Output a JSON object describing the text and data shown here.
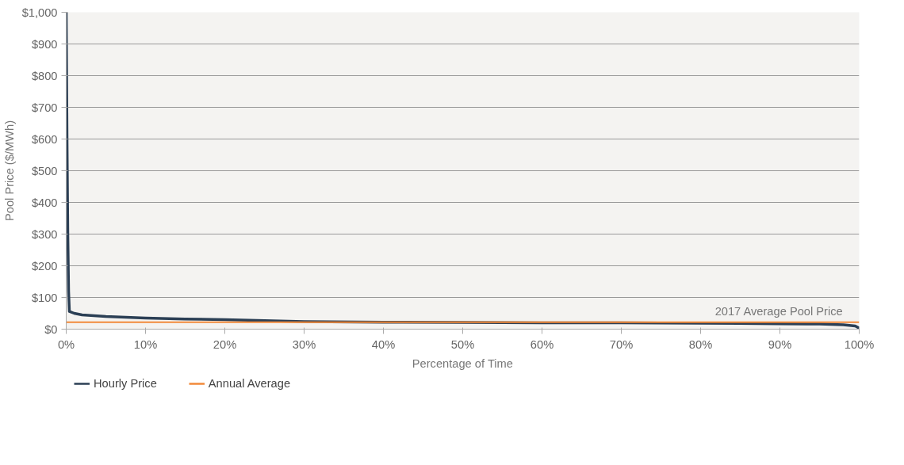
{
  "chart_data": {
    "type": "line",
    "xlabel": "Percentage of Time",
    "ylabel": "Pool Price ($/MWh)",
    "x": [
      0,
      0.1,
      0.2,
      0.3,
      0.4,
      1,
      2,
      5,
      10,
      15,
      20,
      25,
      30,
      40,
      50,
      60,
      70,
      80,
      85,
      90,
      95,
      98,
      99.5,
      100
    ],
    "series": [
      {
        "name": "Hourly Price",
        "color": "#2b3f55",
        "values": [
          1000,
          600,
          300,
          120,
          56,
          50,
          45,
          40,
          35,
          32,
          30,
          27,
          24,
          22,
          21,
          20,
          20,
          19,
          18,
          17,
          16,
          14,
          10,
          3
        ]
      },
      {
        "name": "Annual Average",
        "color": "#f28a3a",
        "x": [
          0,
          100
        ],
        "values": [
          22,
          22
        ]
      }
    ],
    "annotations": [
      {
        "text": "2017 Average Pool Price",
        "x": 98,
        "y": 22
      }
    ],
    "xlim": [
      0,
      100
    ],
    "ylim": [
      0,
      1000
    ],
    "xticks": [
      {
        "value": 0,
        "label": "0%"
      },
      {
        "value": 10,
        "label": "10%"
      },
      {
        "value": 20,
        "label": "20%"
      },
      {
        "value": 30,
        "label": "30%"
      },
      {
        "value": 40,
        "label": "40%"
      },
      {
        "value": 50,
        "label": "50%"
      },
      {
        "value": 60,
        "label": "60%"
      },
      {
        "value": 70,
        "label": "70%"
      },
      {
        "value": 80,
        "label": "80%"
      },
      {
        "value": 90,
        "label": "90%"
      },
      {
        "value": 100,
        "label": "100%"
      }
    ],
    "yticks": [
      {
        "value": 0,
        "label": "$0"
      },
      {
        "value": 100,
        "label": "$100"
      },
      {
        "value": 200,
        "label": "$200"
      },
      {
        "value": 300,
        "label": "$300"
      },
      {
        "value": 400,
        "label": "$400"
      },
      {
        "value": 500,
        "label": "$500"
      },
      {
        "value": 600,
        "label": "$600"
      },
      {
        "value": 700,
        "label": "$700"
      },
      {
        "value": 800,
        "label": "$800"
      },
      {
        "value": 900,
        "label": "$900"
      },
      {
        "value": 1000,
        "label": "$1,000"
      }
    ],
    "grid": "y",
    "legend": "bottom",
    "marker": "none",
    "line_style": "solid"
  }
}
